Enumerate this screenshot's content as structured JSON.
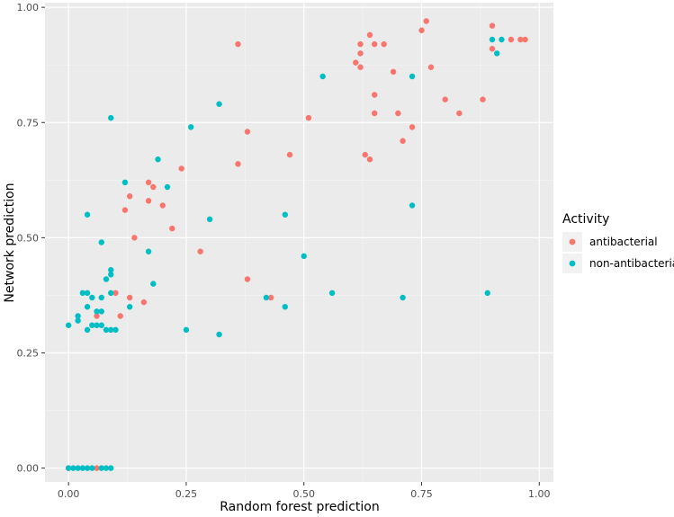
{
  "chart_data": {
    "type": "scatter",
    "xlabel": "Random forest prediction",
    "ylabel": "Network prediction",
    "xlim": [
      -0.05,
      1.03
    ],
    "ylim": [
      -0.03,
      1.01
    ],
    "x_ticks": [
      0.0,
      0.25,
      0.5,
      0.75,
      1.0
    ],
    "x_tick_labels": [
      "0.00",
      "0.25",
      "0.50",
      "0.75",
      "1.00"
    ],
    "y_ticks": [
      0.0,
      0.25,
      0.5,
      0.75,
      1.0
    ],
    "y_tick_labels": [
      "0.00",
      "0.25",
      "0.50",
      "0.75",
      "1.00"
    ],
    "grid": true,
    "legend": {
      "title": "Activity",
      "placement": "right"
    },
    "series": [
      {
        "name": "antibacterial",
        "color": "#F8766D",
        "points": [
          [
            0.36,
            0.92
          ],
          [
            0.64,
            0.94
          ],
          [
            0.76,
            0.97
          ],
          [
            0.75,
            0.95
          ],
          [
            0.9,
            0.96
          ],
          [
            0.62,
            0.92
          ],
          [
            0.65,
            0.92
          ],
          [
            0.67,
            0.92
          ],
          [
            0.62,
            0.9
          ],
          [
            0.61,
            0.88
          ],
          [
            0.62,
            0.87
          ],
          [
            0.69,
            0.86
          ],
          [
            0.77,
            0.87
          ],
          [
            0.9,
            0.91
          ],
          [
            0.94,
            0.93
          ],
          [
            0.97,
            0.93
          ],
          [
            0.96,
            0.93
          ],
          [
            0.65,
            0.81
          ],
          [
            0.8,
            0.8
          ],
          [
            0.88,
            0.8
          ],
          [
            0.65,
            0.77
          ],
          [
            0.7,
            0.77
          ],
          [
            0.83,
            0.77
          ],
          [
            0.51,
            0.76
          ],
          [
            0.38,
            0.73
          ],
          [
            0.73,
            0.74
          ],
          [
            0.71,
            0.71
          ],
          [
            0.63,
            0.68
          ],
          [
            0.64,
            0.67
          ],
          [
            0.47,
            0.68
          ],
          [
            0.36,
            0.66
          ],
          [
            0.24,
            0.65
          ],
          [
            0.17,
            0.62
          ],
          [
            0.18,
            0.61
          ],
          [
            0.13,
            0.59
          ],
          [
            0.17,
            0.58
          ],
          [
            0.12,
            0.56
          ],
          [
            0.2,
            0.57
          ],
          [
            0.22,
            0.52
          ],
          [
            0.14,
            0.5
          ],
          [
            0.28,
            0.47
          ],
          [
            0.38,
            0.41
          ],
          [
            0.43,
            0.37
          ],
          [
            0.1,
            0.38
          ],
          [
            0.16,
            0.36
          ],
          [
            0.13,
            0.37
          ],
          [
            0.06,
            0.33
          ],
          [
            0.11,
            0.33
          ],
          [
            0.0,
            0.0
          ],
          [
            0.06,
            0.0
          ]
        ]
      },
      {
        "name": "non-antibacterial",
        "color": "#00BFC4",
        "points": [
          [
            0.9,
            0.93
          ],
          [
            0.92,
            0.93
          ],
          [
            0.91,
            0.9
          ],
          [
            0.54,
            0.85
          ],
          [
            0.73,
            0.85
          ],
          [
            0.09,
            0.76
          ],
          [
            0.32,
            0.79
          ],
          [
            0.26,
            0.74
          ],
          [
            0.19,
            0.67
          ],
          [
            0.12,
            0.62
          ],
          [
            0.21,
            0.61
          ],
          [
            0.04,
            0.55
          ],
          [
            0.46,
            0.55
          ],
          [
            0.73,
            0.57
          ],
          [
            0.3,
            0.54
          ],
          [
            0.07,
            0.49
          ],
          [
            0.17,
            0.47
          ],
          [
            0.5,
            0.46
          ],
          [
            0.09,
            0.43
          ],
          [
            0.09,
            0.42
          ],
          [
            0.08,
            0.41
          ],
          [
            0.18,
            0.4
          ],
          [
            0.56,
            0.38
          ],
          [
            0.71,
            0.37
          ],
          [
            0.89,
            0.38
          ],
          [
            0.42,
            0.37
          ],
          [
            0.03,
            0.38
          ],
          [
            0.04,
            0.38
          ],
          [
            0.05,
            0.37
          ],
          [
            0.07,
            0.37
          ],
          [
            0.09,
            0.38
          ],
          [
            0.04,
            0.35
          ],
          [
            0.06,
            0.34
          ],
          [
            0.07,
            0.34
          ],
          [
            0.13,
            0.35
          ],
          [
            0.46,
            0.35
          ],
          [
            0.02,
            0.33
          ],
          [
            0.05,
            0.31
          ],
          [
            0.06,
            0.31
          ],
          [
            0.07,
            0.31
          ],
          [
            0.08,
            0.3
          ],
          [
            0.09,
            0.3
          ],
          [
            0.1,
            0.3
          ],
          [
            0.04,
            0.3
          ],
          [
            0.0,
            0.31
          ],
          [
            0.02,
            0.32
          ],
          [
            0.25,
            0.3
          ],
          [
            0.32,
            0.29
          ],
          [
            0.0,
            0.0
          ],
          [
            0.01,
            0.0
          ],
          [
            0.02,
            0.0
          ],
          [
            0.03,
            0.0
          ],
          [
            0.04,
            0.0
          ],
          [
            0.05,
            0.0
          ],
          [
            0.07,
            0.0
          ],
          [
            0.08,
            0.0
          ],
          [
            0.09,
            0.0
          ]
        ]
      }
    ]
  }
}
